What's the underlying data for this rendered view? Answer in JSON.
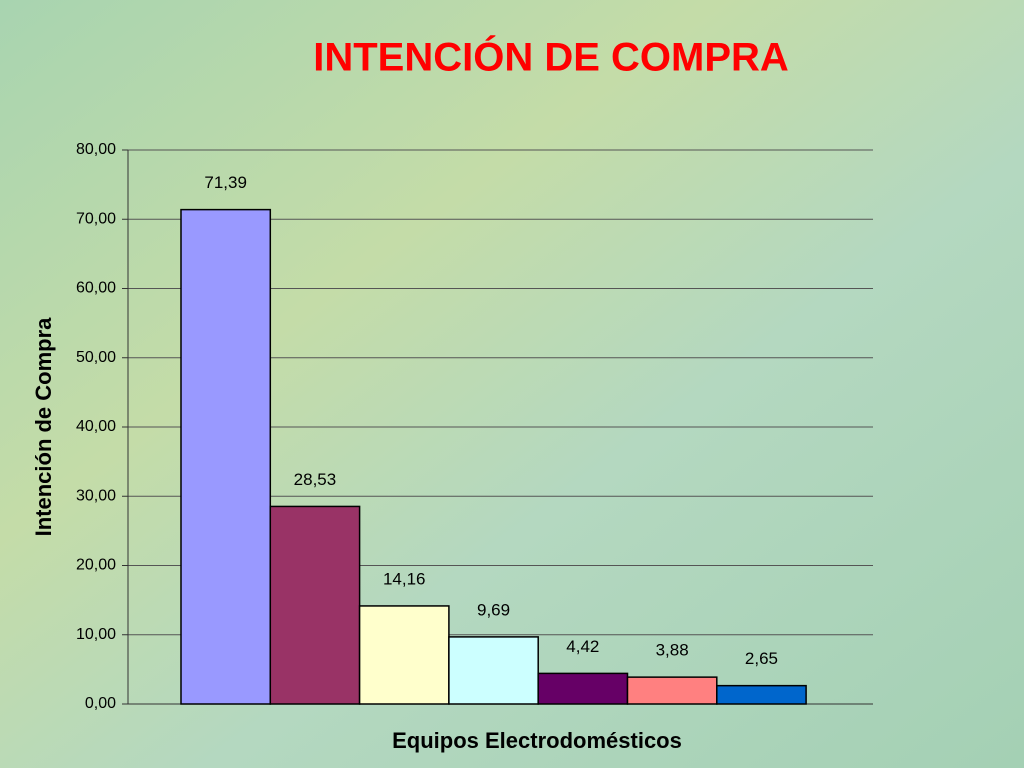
{
  "chart_data": {
    "type": "bar",
    "title": "INTENCIÓN DE COMPRA",
    "x_label": "Equipos Electrodomésticos",
    "y_label": "Intención de Compra",
    "categories": [
      null,
      null,
      null,
      null,
      null,
      null,
      null
    ],
    "values": [
      71.39,
      28.53,
      14.16,
      9.69,
      4.42,
      3.88,
      2.65
    ],
    "value_labels": [
      "71,39",
      "28,53",
      "14,16",
      "9,69",
      "4,42",
      "3,88",
      "2,65"
    ],
    "colors": [
      "#9999ff",
      "#993366",
      "#ffffcc",
      "#ccffff",
      "#660066",
      "#ff8080",
      "#0066cc"
    ],
    "ylim": [
      0,
      80
    ],
    "yticks": [
      {
        "value": 0,
        "label": "0,00"
      },
      {
        "value": 10,
        "label": "10,00"
      },
      {
        "value": 20,
        "label": "20,00"
      },
      {
        "value": 30,
        "label": "30,00"
      },
      {
        "value": 40,
        "label": "40,00"
      },
      {
        "value": 50,
        "label": "50,00"
      },
      {
        "value": 60,
        "label": "60,00"
      },
      {
        "value": 70,
        "label": "70,00"
      },
      {
        "value": 80,
        "label": "80,00"
      }
    ],
    "grid": true
  }
}
